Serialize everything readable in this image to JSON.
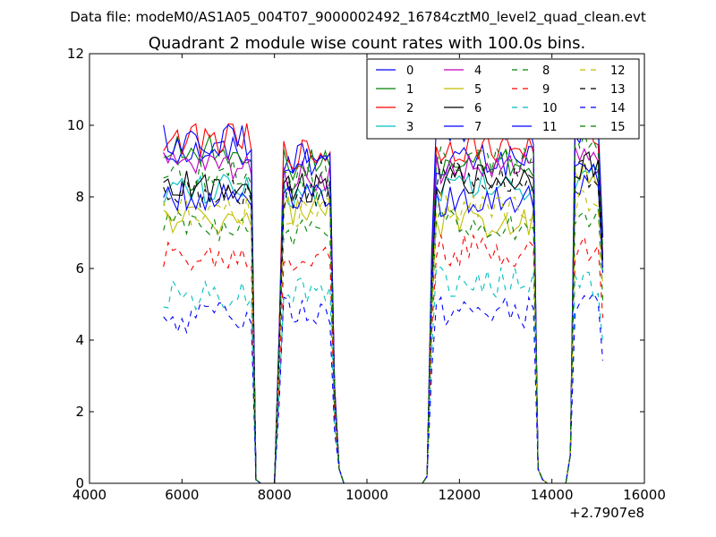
{
  "suptitle": "Data file: modeM0/AS1A05_004T07_9000002492_16784cztM0_level2_quad_clean.evt",
  "chart_data": {
    "type": "line",
    "title": "Quadrant 2 module wise count rates with 100.0s bins.",
    "xlabel": "",
    "ylabel": "",
    "xlim": [
      4000,
      16000
    ],
    "ylim": [
      0,
      12
    ],
    "x_offset_label": "+2.7907e8",
    "xticks": [
      4000,
      6000,
      8000,
      10000,
      12000,
      14000,
      16000
    ],
    "yticks": [
      0,
      2,
      4,
      6,
      8,
      10,
      12
    ],
    "legend_location": "upper-right",
    "legend_columns": 4,
    "x_grid": [
      5600,
      5700,
      5800,
      5900,
      6000,
      6100,
      6200,
      6300,
      6400,
      6500,
      6600,
      6700,
      6800,
      6900,
      7000,
      7100,
      7200,
      7300,
      7400,
      7500,
      7600,
      7700,
      7800,
      7900,
      8000,
      8100,
      8200,
      8300,
      8400,
      8500,
      8600,
      8700,
      8800,
      8900,
      9000,
      9100,
      9200,
      9300,
      9400,
      9500,
      9600,
      9700,
      9800,
      9900,
      10000,
      10100,
      10200,
      10300,
      10400,
      10500,
      10600,
      10700,
      10800,
      10900,
      11000,
      11100,
      11200,
      11300,
      11400,
      11500,
      11600,
      11700,
      11800,
      11900,
      12000,
      12100,
      12200,
      12300,
      12400,
      12500,
      12600,
      12700,
      12800,
      12900,
      13000,
      13100,
      13200,
      13300,
      13400,
      13500,
      13600,
      13700,
      13800,
      13900,
      14000,
      14100,
      14200,
      14300,
      14400,
      14500,
      14600,
      14700,
      14800,
      14900,
      15000,
      15100
    ],
    "segment_levels_note": "approximate per-module plateau levels for each on-source segment (seg1 5600-7400, seg2 8200-9200, seg3 11500-13600, seg4 14500-15100)",
    "series": [
      {
        "name": "0",
        "color": "#0000ff",
        "dash": "solid",
        "levels": [
          9.3,
          9.1,
          9.0,
          8.4
        ]
      },
      {
        "name": "1",
        "color": "#008000",
        "dash": "solid",
        "levels": [
          9.3,
          8.9,
          8.9,
          9.9
        ]
      },
      {
        "name": "2",
        "color": "#ff0000",
        "dash": "solid",
        "levels": [
          9.6,
          9.2,
          9.4,
          9.8
        ]
      },
      {
        "name": "3",
        "color": "#00bfbf",
        "dash": "solid",
        "levels": [
          8.2,
          8.1,
          8.3,
          8.5
        ]
      },
      {
        "name": "4",
        "color": "#bf00bf",
        "dash": "solid",
        "levels": [
          8.9,
          8.6,
          8.8,
          9.1
        ]
      },
      {
        "name": "5",
        "color": "#bfbf00",
        "dash": "solid",
        "levels": [
          7.4,
          7.6,
          7.3,
          8.7
        ]
      },
      {
        "name": "6",
        "color": "#000000",
        "dash": "solid",
        "levels": [
          8.3,
          8.3,
          8.5,
          8.9
        ]
      },
      {
        "name": "7",
        "color": "#0000ff",
        "dash": "solid",
        "levels": [
          8.0,
          8.1,
          7.9,
          8.6
        ]
      },
      {
        "name": "8",
        "color": "#008000",
        "dash": "dashed",
        "levels": [
          7.2,
          7.0,
          7.2,
          7.3
        ]
      },
      {
        "name": "9",
        "color": "#ff0000",
        "dash": "dashed",
        "levels": [
          6.3,
          6.3,
          6.5,
          6.6
        ]
      },
      {
        "name": "10",
        "color": "#00bfbf",
        "dash": "dashed",
        "levels": [
          5.3,
          5.4,
          5.6,
          5.6
        ]
      },
      {
        "name": "11",
        "color": "#0000ff",
        "dash": "solid",
        "levels": [
          9.6,
          9.0,
          9.9,
          9.8
        ]
      },
      {
        "name": "12",
        "color": "#bfbf00",
        "dash": "dashed",
        "levels": [
          7.6,
          7.6,
          7.7,
          7.8
        ]
      },
      {
        "name": "13",
        "color": "#000000",
        "dash": "dashed",
        "levels": [
          8.1,
          8.0,
          8.6,
          8.7
        ]
      },
      {
        "name": "14",
        "color": "#0000ff",
        "dash": "dashed",
        "levels": [
          4.6,
          4.8,
          4.8,
          4.9
        ]
      },
      {
        "name": "15",
        "color": "#008000",
        "dash": "dashed",
        "levels": [
          8.6,
          8.4,
          9.0,
          9.4
        ]
      }
    ]
  }
}
